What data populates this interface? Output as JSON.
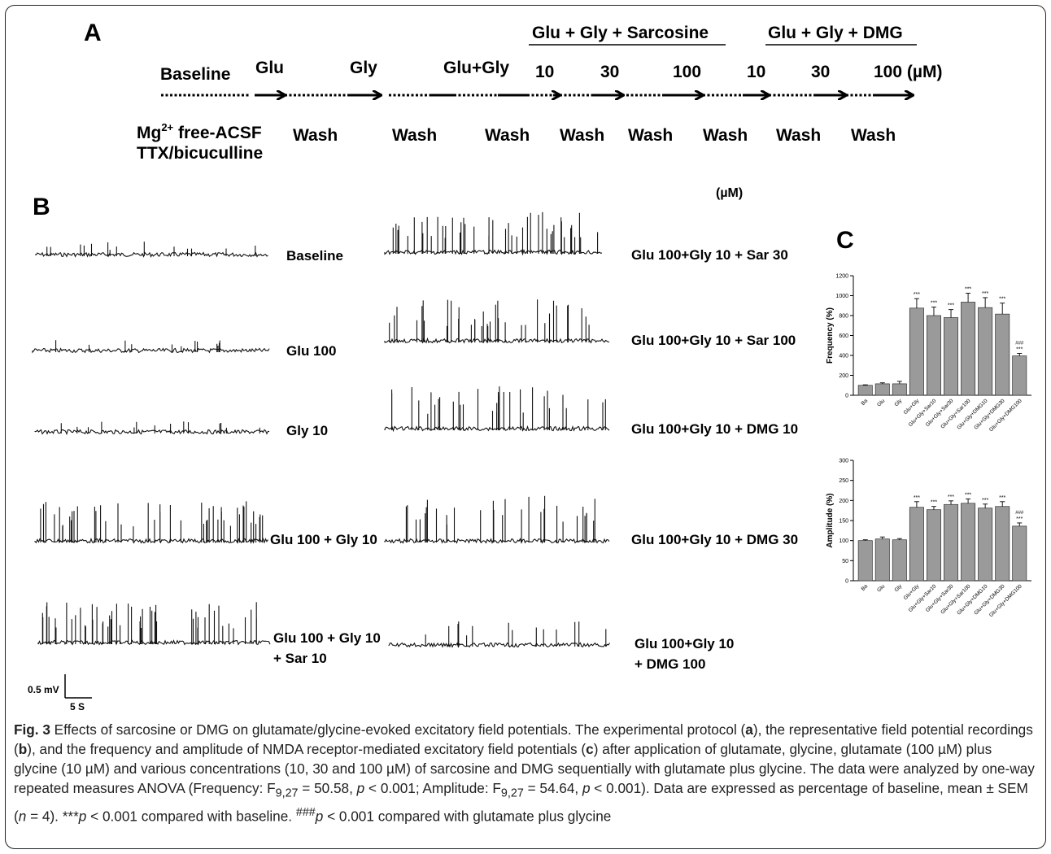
{
  "panelA": {
    "letter": "A",
    "sarcosine_header": "Glu + Gly + Sarcosine",
    "dmg_header": "Glu + Gly + DMG",
    "top_labels": [
      "Baseline",
      "Glu",
      "Gly",
      "Glu+Gly",
      "10",
      "30",
      "100",
      "10",
      "30",
      "100 (µM)"
    ],
    "bottom_labels": [
      "Wash",
      "Wash",
      "Wash",
      "Wash",
      "Wash",
      "Wash",
      "Wash",
      "Wash"
    ],
    "mg_prefix": "Mg",
    "mg_sup": "2+",
    "mg_suffix": " free-ACSF",
    "ttx": "TTX/bicuculline"
  },
  "panelB": {
    "letter": "B",
    "unit": "(µM)",
    "left_labels": [
      "Baseline",
      "Glu 100",
      "Gly 10",
      "Glu 100 + Gly 10",
      "Glu 100 + Gly 10",
      "+ Sar 10"
    ],
    "right_labels": [
      "Glu 100+Gly 10 + Sar 30",
      "Glu 100+Gly 10 + Sar 100",
      "Glu 100+Gly 10 + DMG 10",
      "Glu 100+Gly 10 + DMG 30",
      "Glu 100+Gly 10",
      "+ DMG 100"
    ],
    "scalebar_v": "0.5 mV",
    "scalebar_h": "5 S"
  },
  "panelC": {
    "letter": "C"
  },
  "chart_data": [
    {
      "type": "bar",
      "ylabel": "Frequency (%)",
      "ylim": [
        0,
        1200
      ],
      "yticks": [
        "0",
        "200",
        "400",
        "600",
        "800",
        "1000",
        "1200"
      ],
      "categories": [
        "Ba",
        "Glu",
        "Gly",
        "Glu+Gly",
        "Glu+Gly+Sar10",
        "Glu+Gly+Sar30",
        "Glu+Gly+Sar100",
        "Glu+Gly+DMG10",
        "Glu+Gly+DMG30",
        "Glu+Gly+DMG100"
      ],
      "values": [
        100,
        115,
        115,
        875,
        800,
        780,
        935,
        880,
        815,
        395
      ],
      "errors": [
        5,
        10,
        25,
        95,
        85,
        80,
        90,
        100,
        110,
        25
      ],
      "marks": [
        "",
        "",
        "",
        "***",
        "***",
        "***",
        "***",
        "***",
        "***",
        "***"
      ],
      "hash_marks": [
        "",
        "",
        "",
        "",
        "",
        "",
        "",
        "",
        "",
        "###"
      ]
    },
    {
      "type": "bar",
      "ylabel": "Amplitude (%)",
      "ylim": [
        0,
        300
      ],
      "yticks": [
        "0",
        "50",
        "100",
        "150",
        "200",
        "250",
        "300"
      ],
      "categories": [
        "Ba",
        "Glu",
        "Gly",
        "Glu+Gly",
        "Glu+Gly+Sar10",
        "Glu+Gly+Sar30",
        "Glu+Gly+Sar100",
        "Glu+Gly+DMG10",
        "Glu+Gly+DMG30",
        "Glu+Gly+DMG100"
      ],
      "values": [
        100,
        104,
        102,
        183,
        177,
        190,
        193,
        181,
        185,
        136
      ],
      "errors": [
        2,
        5,
        3,
        14,
        8,
        9,
        11,
        10,
        12,
        8
      ],
      "marks": [
        "",
        "",
        "",
        "***",
        "***",
        "***",
        "***",
        "***",
        "***",
        "***"
      ],
      "hash_marks": [
        "",
        "",
        "",
        "",
        "",
        "",
        "",
        "",
        "",
        "###"
      ]
    }
  ],
  "caption": {
    "fig_label": "Fig. 3",
    "title": " Effects of sarcosine or DMG on glutamate/glycine-evoked excitatory field potentials. The experimental protocol (",
    "a": "a",
    "t2": "), the representative field potential recordings (",
    "b": "b",
    "t3": "), and the frequency and amplitude of NMDA receptor-mediated excitatory field potentials (",
    "c": "c",
    "t4": ") after application of glutamate, glycine, glutamate (100 µM) plus glycine (10 µM) and various concentrations (10, 30 and 100 µM) of sarcosine and DMG sequentially with glutamate plus glycine. The data were analyzed by one-way repeated measures ANOVA (Frequency: F",
    "sub1": "9,27",
    "t5": " = 50.58, ",
    "p1": "p",
    "t6": " < 0.001; Amplitude: F",
    "sub2": "9,27",
    "t7": " = 54.64, ",
    "p2": "p",
    "t8": " < 0.001). Data are expressed as percentage of baseline, mean ± SEM (",
    "n": "n",
    "t9": " = 4). ***",
    "p3": "p",
    "t10": " < 0.001 compared with baseline. ",
    "hash": "###",
    "p4": "p",
    "t11": " < 0.001 compared with glutamate plus glycine"
  }
}
